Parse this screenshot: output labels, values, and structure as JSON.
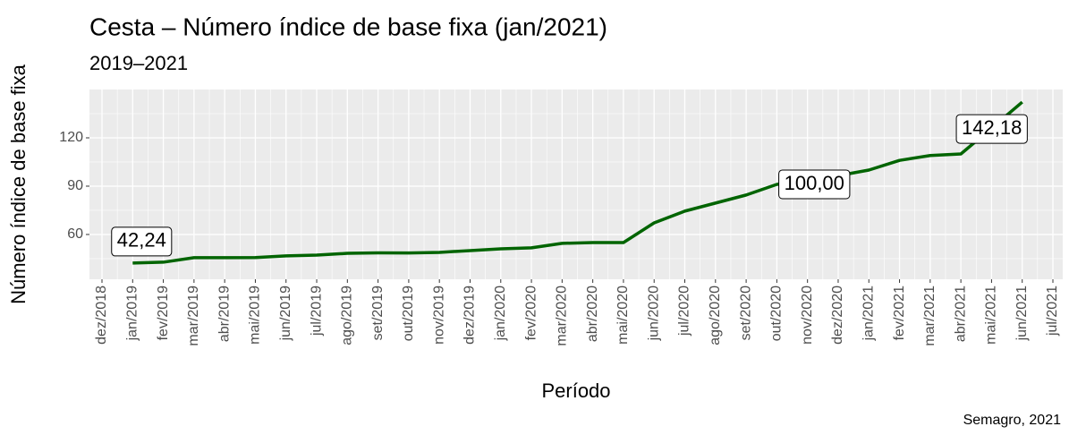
{
  "chart_data": {
    "type": "line",
    "title": "Cesta – Número índice de base fixa (jan/2021)",
    "subtitle": "2019–2021",
    "x_label": "Período",
    "y_label": "Número índice de base fixa",
    "caption": "Semagro, 2021",
    "categories": [
      "dez/2018",
      "jan/2019",
      "fev/2019",
      "mar/2019",
      "abr/2019",
      "mai/2019",
      "jun/2019",
      "jul/2019",
      "ago/2019",
      "set/2019",
      "out/2019",
      "nov/2019",
      "dez/2019",
      "jan/2020",
      "fev/2020",
      "mar/2020",
      "abr/2020",
      "mai/2020",
      "jun/2020",
      "jul/2020",
      "ago/2020",
      "set/2020",
      "out/2020",
      "nov/2020",
      "dez/2020",
      "jan/2021",
      "fev/2021",
      "mar/2021",
      "abr/2021",
      "mai/2021",
      "jun/2021",
      "jul/2021"
    ],
    "series": [
      {
        "name": "Cesta",
        "color": "#006400",
        "values": [
          null,
          42.24,
          42.8,
          45.6,
          45.6,
          45.7,
          46.7,
          47.2,
          48.3,
          48.6,
          48.5,
          48.9,
          50.0,
          51.1,
          51.7,
          54.5,
          55.0,
          55.0,
          67.2,
          74.5,
          79.5,
          84.5,
          91.1,
          93.5,
          96.5,
          100.0,
          106,
          109,
          110,
          126,
          142.18,
          null
        ],
        "value_labels": [
          null,
          "42,24",
          null,
          null,
          null,
          null,
          null,
          null,
          null,
          null,
          null,
          null,
          null,
          null,
          null,
          null,
          null,
          null,
          null,
          null,
          null,
          null,
          null,
          null,
          null,
          "100,00",
          null,
          null,
          null,
          null,
          "142,18",
          null
        ]
      }
    ],
    "ylim": [
      32.2,
      150
    ],
    "yticks": [
      60,
      90,
      120
    ],
    "grid": true
  }
}
